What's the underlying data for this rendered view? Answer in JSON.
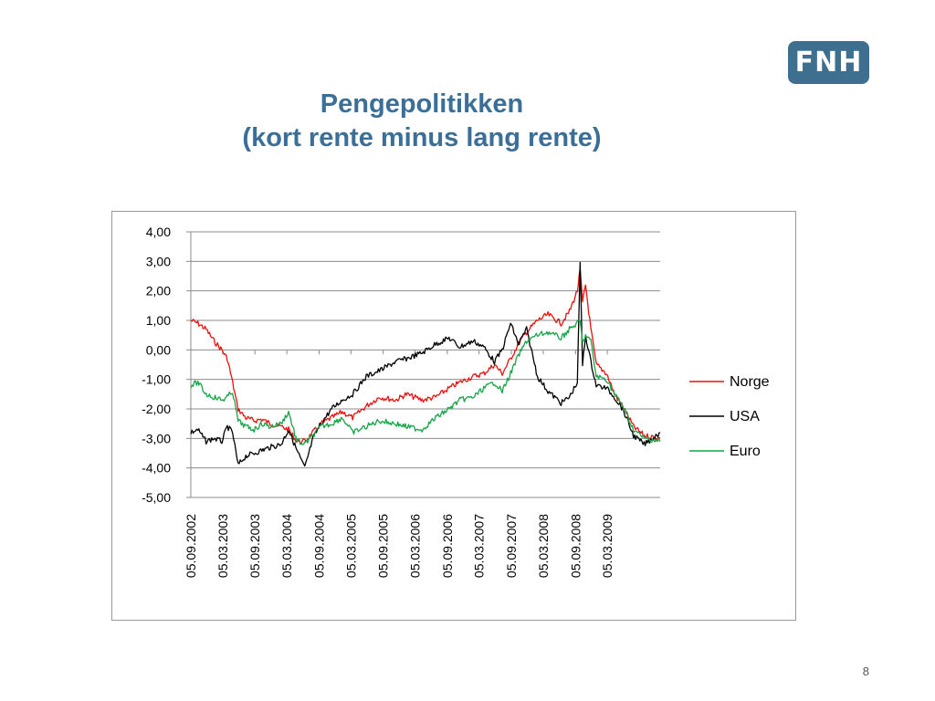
{
  "slide": {
    "logo_text": "FNH",
    "title_line1": "Pengepolitikken",
    "title_line2": "(kort rente minus lang rente)",
    "page_number": "8"
  },
  "colors": {
    "title": "#3b6f98",
    "logo_bg": "#3f6f8f",
    "norge": "#e8100e",
    "usa": "#000000",
    "euro": "#16a447"
  },
  "chart_data": {
    "type": "line",
    "title": "",
    "xlabel": "",
    "ylabel": "",
    "ylim": [
      -5,
      4
    ],
    "y_ticks": [
      4,
      3,
      2,
      1,
      0,
      -1,
      -2,
      -3,
      -4,
      -5
    ],
    "y_tick_labels": [
      "4,00",
      "3,00",
      "2,00",
      "1,00",
      "0,00",
      "-1,00",
      "-2,00",
      "-3,00",
      "-4,00",
      "-5,00"
    ],
    "x_range": [
      "2002-09-05",
      "2009-12-31"
    ],
    "x_ticks": [
      "2002-09-05",
      "2003-03-05",
      "2003-09-05",
      "2004-03-05",
      "2004-09-05",
      "2005-03-05",
      "2005-09-05",
      "2006-03-05",
      "2006-09-05",
      "2007-03-05",
      "2007-09-05",
      "2008-03-05",
      "2008-09-05",
      "2009-03-05"
    ],
    "x_tick_labels": [
      "05.09.2002",
      "05.03.2003",
      "05.09.2003",
      "05.03.2004",
      "05.09.2004",
      "05.03.2005",
      "05.09.2005",
      "05.03.2006",
      "05.09.2006",
      "05.03.2007",
      "05.09.2007",
      "05.03.2008",
      "05.09.2008",
      "05.03.2009"
    ],
    "grid": "horizontal",
    "legend_position": "right",
    "series": [
      {
        "name": "Norge",
        "points": [
          [
            "2002-09-05",
            1.0
          ],
          [
            "2002-10-15",
            0.9
          ],
          [
            "2002-12-01",
            0.7
          ],
          [
            "2003-01-15",
            0.3
          ],
          [
            "2003-03-01",
            0.0
          ],
          [
            "2003-04-01",
            -0.3
          ],
          [
            "2003-05-01",
            -1.1
          ],
          [
            "2003-06-01",
            -2.0
          ],
          [
            "2003-07-15",
            -2.3
          ],
          [
            "2003-09-01",
            -2.4
          ],
          [
            "2003-10-15",
            -2.35
          ],
          [
            "2003-12-01",
            -2.5
          ],
          [
            "2004-02-01",
            -2.6
          ],
          [
            "2004-03-15",
            -2.7
          ],
          [
            "2004-05-01",
            -3.1
          ],
          [
            "2004-06-15",
            -3.1
          ],
          [
            "2004-08-01",
            -2.8
          ],
          [
            "2004-09-15",
            -2.5
          ],
          [
            "2004-11-15",
            -2.3
          ],
          [
            "2005-01-15",
            -2.1
          ],
          [
            "2005-03-15",
            -2.3
          ],
          [
            "2005-06-01",
            -1.9
          ],
          [
            "2005-08-15",
            -1.6
          ],
          [
            "2005-11-15",
            -1.7
          ],
          [
            "2006-01-15",
            -1.5
          ],
          [
            "2006-04-15",
            -1.7
          ],
          [
            "2006-07-01",
            -1.6
          ],
          [
            "2006-09-15",
            -1.3
          ],
          [
            "2006-11-15",
            -1.1
          ],
          [
            "2007-02-01",
            -0.9
          ],
          [
            "2007-04-01",
            -0.8
          ],
          [
            "2007-06-01",
            -0.5
          ],
          [
            "2007-07-15",
            -0.8
          ],
          [
            "2007-09-01",
            -0.3
          ],
          [
            "2007-10-15",
            0.2
          ],
          [
            "2007-12-01",
            0.6
          ],
          [
            "2008-02-01",
            1.0
          ],
          [
            "2008-04-01",
            1.2
          ],
          [
            "2008-06-15",
            0.9
          ],
          [
            "2008-08-01",
            1.3
          ],
          [
            "2008-09-15",
            2.0
          ],
          [
            "2008-10-01",
            2.7
          ],
          [
            "2008-10-15",
            1.6
          ],
          [
            "2008-11-01",
            2.2
          ],
          [
            "2008-12-01",
            0.7
          ],
          [
            "2009-01-01",
            -0.5
          ],
          [
            "2009-03-01",
            -0.8
          ],
          [
            "2009-04-15",
            -1.5
          ],
          [
            "2009-06-01",
            -1.9
          ],
          [
            "2009-08-01",
            -2.6
          ],
          [
            "2009-10-01",
            -2.9
          ],
          [
            "2009-12-31",
            -3.0
          ]
        ]
      },
      {
        "name": "USA",
        "points": [
          [
            "2002-09-05",
            -2.8
          ],
          [
            "2002-10-15",
            -2.7
          ],
          [
            "2002-12-01",
            -3.1
          ],
          [
            "2003-01-15",
            -3.0
          ],
          [
            "2003-03-01",
            -3.1
          ],
          [
            "2003-04-01",
            -2.6
          ],
          [
            "2003-05-01",
            -2.8
          ],
          [
            "2003-06-01",
            -3.9
          ],
          [
            "2003-07-15",
            -3.6
          ],
          [
            "2003-09-01",
            -3.5
          ],
          [
            "2003-10-15",
            -3.4
          ],
          [
            "2003-12-01",
            -3.3
          ],
          [
            "2004-02-01",
            -3.2
          ],
          [
            "2004-03-15",
            -2.7
          ],
          [
            "2004-05-01",
            -3.4
          ],
          [
            "2004-06-15",
            -4.0
          ],
          [
            "2004-08-01",
            -3.0
          ],
          [
            "2004-09-15",
            -2.5
          ],
          [
            "2004-11-15",
            -2.0
          ],
          [
            "2005-01-15",
            -1.7
          ],
          [
            "2005-03-15",
            -1.5
          ],
          [
            "2005-06-01",
            -0.9
          ],
          [
            "2005-08-15",
            -0.7
          ],
          [
            "2005-11-15",
            -0.4
          ],
          [
            "2006-01-15",
            -0.3
          ],
          [
            "2006-04-15",
            -0.1
          ],
          [
            "2006-07-01",
            0.2
          ],
          [
            "2006-09-15",
            0.4
          ],
          [
            "2006-11-15",
            0.1
          ],
          [
            "2007-02-01",
            0.3
          ],
          [
            "2007-04-01",
            0.1
          ],
          [
            "2007-06-01",
            -0.4
          ],
          [
            "2007-07-15",
            0.0
          ],
          [
            "2007-09-01",
            0.9
          ],
          [
            "2007-10-15",
            0.2
          ],
          [
            "2007-12-01",
            0.7
          ],
          [
            "2008-02-01",
            -0.9
          ],
          [
            "2008-04-01",
            -1.4
          ],
          [
            "2008-06-15",
            -1.8
          ],
          [
            "2008-08-01",
            -1.6
          ],
          [
            "2008-09-15",
            -1.1
          ],
          [
            "2008-10-01",
            2.9
          ],
          [
            "2008-10-15",
            -0.5
          ],
          [
            "2008-11-01",
            0.5
          ],
          [
            "2008-12-01",
            -0.4
          ],
          [
            "2009-01-01",
            -1.2
          ],
          [
            "2009-03-01",
            -1.3
          ],
          [
            "2009-04-15",
            -1.6
          ],
          [
            "2009-06-01",
            -2.0
          ],
          [
            "2009-08-01",
            -2.9
          ],
          [
            "2009-10-01",
            -3.2
          ],
          [
            "2009-12-31",
            -2.8
          ]
        ]
      },
      {
        "name": "Euro",
        "points": [
          [
            "2002-09-05",
            -1.2
          ],
          [
            "2002-10-15",
            -1.1
          ],
          [
            "2002-12-01",
            -1.5
          ],
          [
            "2003-01-15",
            -1.6
          ],
          [
            "2003-03-01",
            -1.7
          ],
          [
            "2003-04-01",
            -1.6
          ],
          [
            "2003-05-01",
            -1.4
          ],
          [
            "2003-06-01",
            -2.4
          ],
          [
            "2003-07-15",
            -2.6
          ],
          [
            "2003-09-01",
            -2.7
          ],
          [
            "2003-10-15",
            -2.5
          ],
          [
            "2003-12-01",
            -2.6
          ],
          [
            "2004-02-01",
            -2.5
          ],
          [
            "2004-03-15",
            -2.1
          ],
          [
            "2004-05-01",
            -3.1
          ],
          [
            "2004-06-15",
            -3.2
          ],
          [
            "2004-08-01",
            -2.9
          ],
          [
            "2004-09-15",
            -2.6
          ],
          [
            "2004-11-15",
            -2.5
          ],
          [
            "2005-01-15",
            -2.3
          ],
          [
            "2005-03-15",
            -2.8
          ],
          [
            "2005-06-01",
            -2.6
          ],
          [
            "2005-08-15",
            -2.4
          ],
          [
            "2005-11-15",
            -2.5
          ],
          [
            "2006-01-15",
            -2.6
          ],
          [
            "2006-04-15",
            -2.7
          ],
          [
            "2006-07-01",
            -2.3
          ],
          [
            "2006-09-15",
            -2.0
          ],
          [
            "2006-11-15",
            -1.7
          ],
          [
            "2007-02-01",
            -1.6
          ],
          [
            "2007-04-01",
            -1.3
          ],
          [
            "2007-06-01",
            -1.1
          ],
          [
            "2007-07-15",
            -1.4
          ],
          [
            "2007-09-01",
            -0.8
          ],
          [
            "2007-10-15",
            -0.2
          ],
          [
            "2007-12-01",
            0.3
          ],
          [
            "2008-02-01",
            0.5
          ],
          [
            "2008-04-01",
            0.6
          ],
          [
            "2008-06-15",
            0.4
          ],
          [
            "2008-08-01",
            0.7
          ],
          [
            "2008-09-15",
            0.9
          ],
          [
            "2008-10-01",
            1.0
          ],
          [
            "2008-10-15",
            0.2
          ],
          [
            "2008-11-01",
            0.5
          ],
          [
            "2008-12-01",
            0.3
          ],
          [
            "2009-01-01",
            -0.9
          ],
          [
            "2009-03-01",
            -1.0
          ],
          [
            "2009-04-15",
            -1.5
          ],
          [
            "2009-06-01",
            -1.9
          ],
          [
            "2009-08-01",
            -2.7
          ],
          [
            "2009-10-01",
            -3.0
          ],
          [
            "2009-12-31",
            -3.1
          ]
        ]
      }
    ]
  }
}
